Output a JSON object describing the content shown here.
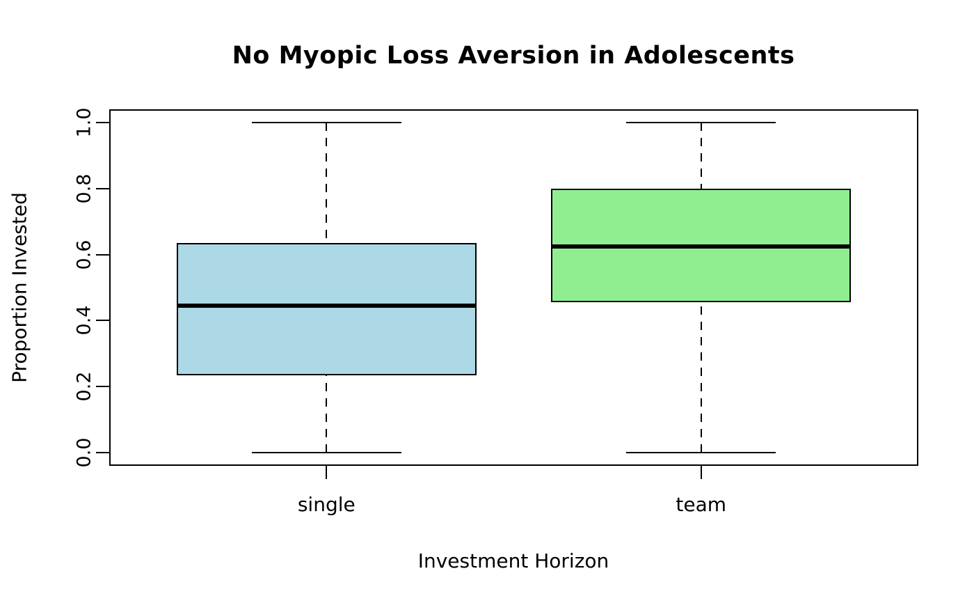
{
  "chart_data": {
    "type": "boxplot",
    "title": "No Myopic Loss Aversion in Adolescents",
    "xlabel": "Investment Horizon",
    "ylabel": "Proportion Invested",
    "categories": [
      "single",
      "team"
    ],
    "series": [
      {
        "name": "single",
        "min": 0.0,
        "q1": 0.235,
        "median": 0.445,
        "q3": 0.635,
        "max": 1.0,
        "fill_color": "#ADD8E6"
      },
      {
        "name": "team",
        "min": 0.0,
        "q1": 0.455,
        "median": 0.625,
        "q3": 0.8,
        "max": 1.0,
        "fill_color": "#90EE90"
      }
    ],
    "ylim": [
      0.0,
      1.0
    ],
    "y_ticks": [
      0.0,
      0.2,
      0.4,
      0.6,
      0.8,
      1.0
    ],
    "y_tick_labels": [
      "0.0",
      "0.2",
      "0.4",
      "0.6",
      "0.8",
      "1.0"
    ],
    "grid": false,
    "legend": "none",
    "box_border_color": "#000000",
    "median_color": "#000000",
    "whisker_style": "dashed",
    "background_color": "#FFFFFF"
  }
}
